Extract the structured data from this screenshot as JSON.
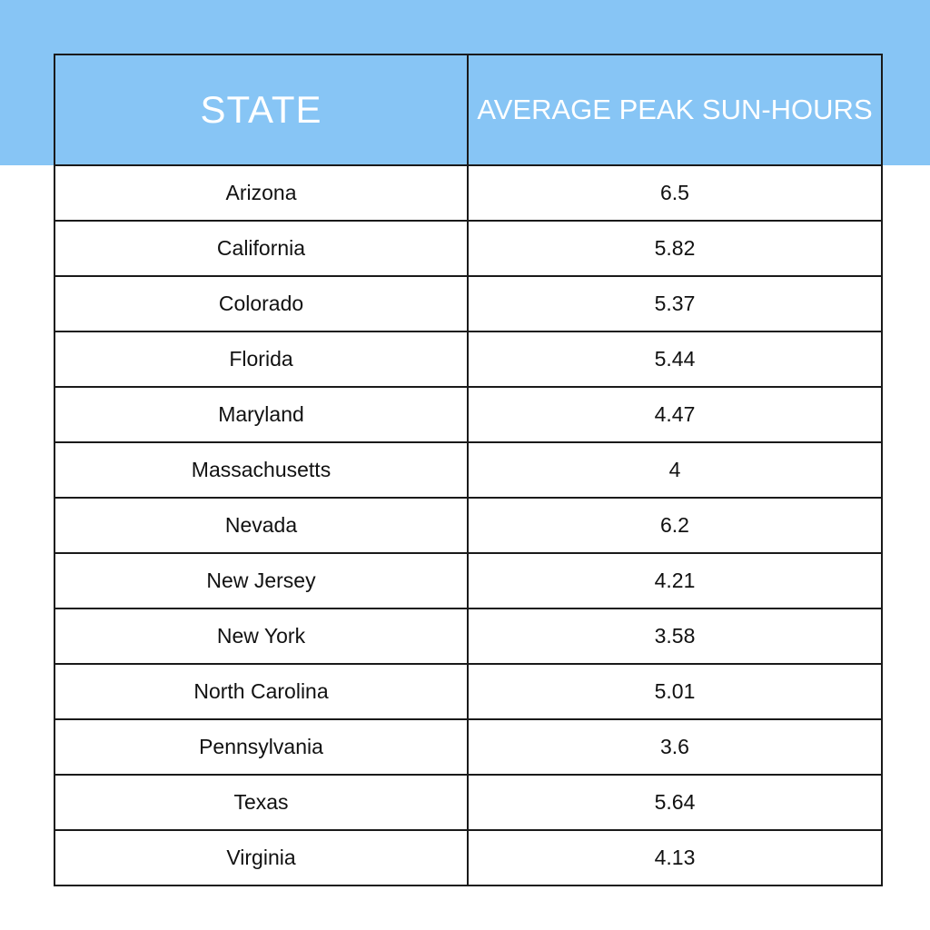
{
  "table": {
    "headers": {
      "state": "STATE",
      "value": "AVERAGE PEAK SUN-HOURS"
    },
    "rows": [
      {
        "state": "Arizona",
        "value": "6.5"
      },
      {
        "state": "California",
        "value": "5.82"
      },
      {
        "state": "Colorado",
        "value": "5.37"
      },
      {
        "state": "Florida",
        "value": "5.44"
      },
      {
        "state": "Maryland",
        "value": "4.47"
      },
      {
        "state": "Massachusetts",
        "value": "4"
      },
      {
        "state": "Nevada",
        "value": "6.2"
      },
      {
        "state": "New Jersey",
        "value": "4.21"
      },
      {
        "state": "New York",
        "value": "3.58"
      },
      {
        "state": "North Carolina",
        "value": "5.01"
      },
      {
        "state": "Pennsylvania",
        "value": "3.6"
      },
      {
        "state": "Texas",
        "value": "5.64"
      },
      {
        "state": "Virginia",
        "value": "4.13"
      }
    ]
  },
  "colors": {
    "header_background": "#87c5f5",
    "header_text": "#ffffff",
    "border": "#1a1a1a",
    "body_text": "#111111"
  }
}
